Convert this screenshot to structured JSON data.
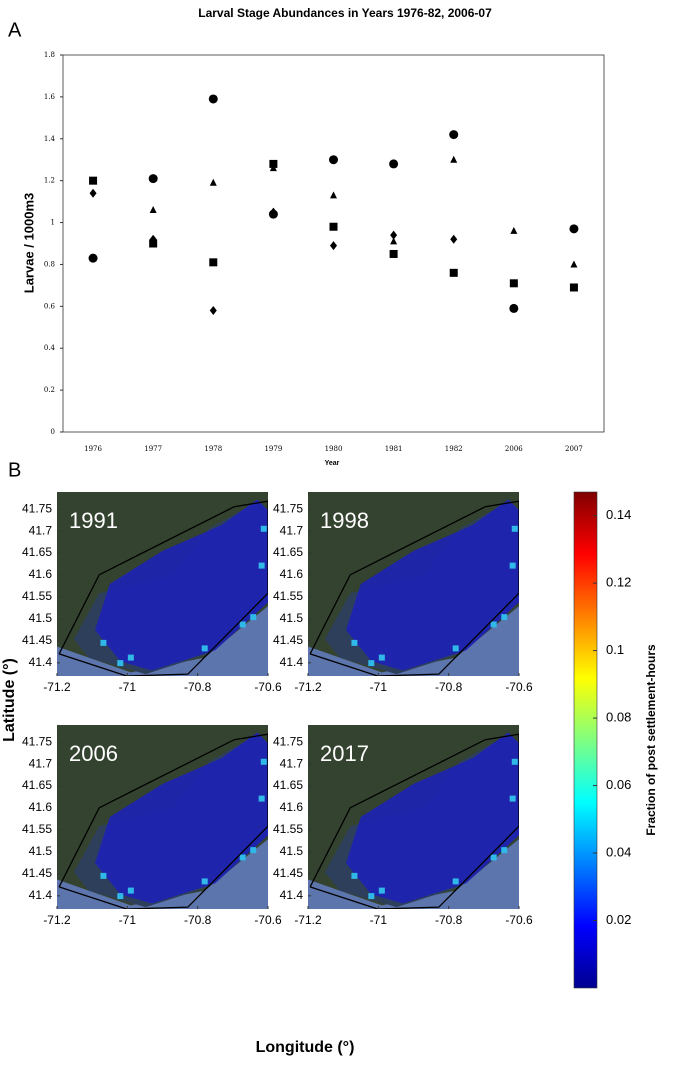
{
  "panel_labels": [
    "A",
    "B"
  ],
  "chart_data": [
    {
      "type": "scatter",
      "title": "Larval Stage Abundances in Years 1976-82, 2006-07",
      "xlabel": "Year",
      "ylabel": "Larvae / 1000m3",
      "categories": [
        "1976",
        "1977",
        "1978",
        "1979",
        "1980",
        "1981",
        "1982",
        "2006",
        "2007"
      ],
      "series": [
        {
          "marker": "circle",
          "color": "#000000",
          "values": [
            0.83,
            1.21,
            1.59,
            1.04,
            1.3,
            1.28,
            1.42,
            0.59,
            0.97
          ]
        },
        {
          "marker": "triangle",
          "color": "#000000",
          "values": [
            null,
            1.06,
            1.19,
            1.26,
            1.13,
            0.91,
            1.3,
            0.96,
            0.8
          ]
        },
        {
          "marker": "square",
          "color": "#000000",
          "values": [
            1.2,
            0.9,
            0.81,
            1.28,
            0.98,
            0.85,
            0.76,
            0.71,
            0.69
          ]
        },
        {
          "marker": "diamond",
          "color": "#000000",
          "values": [
            1.14,
            0.92,
            0.58,
            1.05,
            0.89,
            0.94,
            0.92,
            null,
            null
          ]
        }
      ],
      "ylim": [
        0,
        1.8
      ],
      "yticks": [
        0,
        0.2,
        0.4,
        0.6,
        0.8,
        1,
        1.2,
        1.4,
        1.6,
        1.8
      ]
    },
    {
      "type": "heatmap-map",
      "xlabel": "Longitude (°)",
      "ylabel": "Latitude (°)",
      "panels": [
        {
          "title": "1991"
        },
        {
          "title": "1998"
        },
        {
          "title": "2006"
        },
        {
          "title": "2017"
        }
      ],
      "xlim": [
        -71.2,
        -70.6
      ],
      "xticks": [
        -71.2,
        -71,
        -70.8,
        -70.6
      ],
      "ylim": [
        41.37,
        41.789
      ],
      "yticks": [
        41.4,
        41.45,
        41.5,
        41.55,
        41.6,
        41.65,
        41.7,
        41.75
      ],
      "colorbar": {
        "label": "Fraction of post settlement-hours",
        "lim": [
          0,
          0.147
        ],
        "ticks": [
          0.02,
          0.04,
          0.06,
          0.08,
          0.1,
          0.12,
          0.14
        ],
        "colormap": [
          "#00008f",
          "#0000ff",
          "#0080ff",
          "#00ffff",
          "#80ff80",
          "#ffff00",
          "#ff8000",
          "#ff0000",
          "#800000"
        ]
      }
    }
  ]
}
